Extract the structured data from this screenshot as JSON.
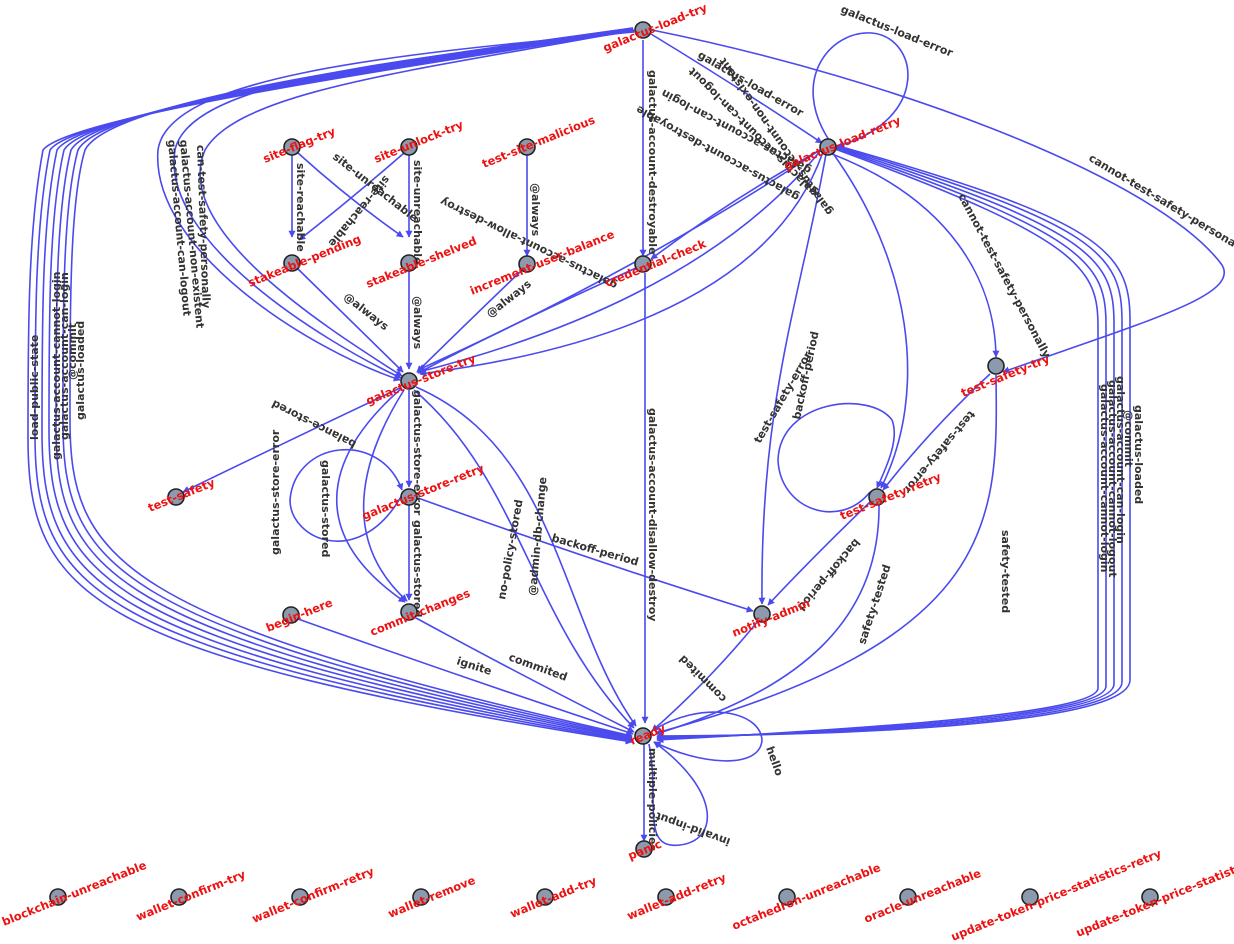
{
  "colors": {
    "edge": "#4a4aee",
    "node_fill": "#8c9aae",
    "node_stroke": "#222222",
    "node_label": "#ee1111",
    "edge_label": "#333333"
  },
  "nodes": {
    "galactus_load_try": "galactus-load-try",
    "galactus_load_retry": "galactus-load-retry",
    "site_flag_try": "site-flag-try",
    "site_unlock_try": "site-unlock-try",
    "test_site_malicious": "test-site-malicious",
    "stakeable_pending": "stakeable-pending",
    "stakeable_shelved": "stakeable-shelved",
    "increment_user_balance": "increment-user-balance",
    "credential_check": "credential-check",
    "galactus_store_try": "galactus-store-try",
    "test_safety_try": "test-safety-try",
    "test_safety": "test-safety",
    "galactus_store_retry": "galactus-store-retry",
    "test_safety_retry": "test-safety-retry",
    "begin_here": "begin-here",
    "commit_changes": "commit-changes",
    "notify_admin": "notify-admin",
    "ready": "ready",
    "panic": "panic",
    "blockchain_unreachable": "blockchain-unreachable",
    "wallet_confirm_try": "wallet-confirm-try",
    "wallet_confirm_retry": "wallet-confirm-retry",
    "wallet_remove": "wallet-remove",
    "wallet_add_try": "wallet-add-try",
    "wallet_add_retry": "wallet-add-retry",
    "octahedron_unreachable": "octahedron-unreachable",
    "oracle_unreachable": "oracle-unreachable",
    "update_token_price_statistics_retry": "update-token-price-statistics-retry",
    "update_token_price_statistics_try": "update-token-price-statistics-try"
  },
  "edge_labels": {
    "galactus_load_error": "galactus-load-error",
    "galactus_account_destroyable": "galactus-account-destroyable",
    "cannot_test_safety_personally": "cannot-test-safety-personally",
    "can_test_safety_personally": "can-test-safety-personally",
    "galactus_account_non_existent": "galactus-account-non-existent",
    "galactus_account_can_logout": "galactus-account-can-logout",
    "site_reachable": "site-reachable",
    "site_unreachable": "site-unreachable",
    "always": "@always",
    "galactus_account_can_login": "galactus-account-can-login",
    "galactus_account_allow_destroy": "galactus-account-allow-destroy",
    "galactus_store_error": "galactus-store-error",
    "galactus_stored": "galactus-stored",
    "balance_stored": "balance-stored",
    "backoff_period": "backoff-period",
    "test_safety_error": "test-safety-error",
    "galactus_account_disallow_destroy": "galactus-account-disallow-destroy",
    "no_policy_stored": "no-policy-stored",
    "admin_db_change": "@admin-db-change",
    "ignite": "ignite",
    "commited": "commited",
    "safety_tested": "safety-tested",
    "galactus_loaded": "galactus-loaded",
    "galactus_account_cannot_login": "galactus-account-cannot-login",
    "galactus_account_cannot_logout": "galactus-account-cannot-logout",
    "commit": "@commit",
    "load_public_state": "load-public-state",
    "hello": "hello",
    "multiple_policies": "multiple-policies",
    "invalid_input": "invalid-input"
  }
}
